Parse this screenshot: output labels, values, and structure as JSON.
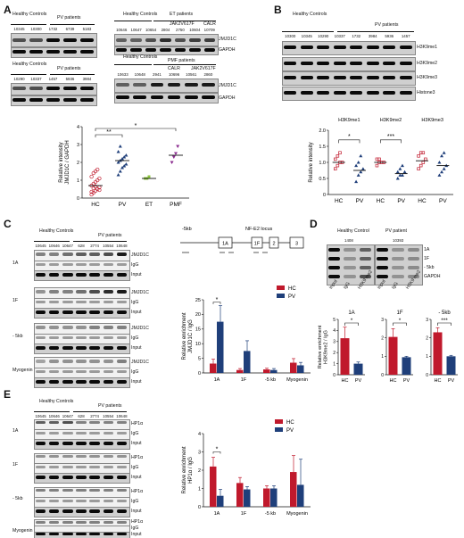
{
  "panels": {
    "A": "A",
    "B": "B",
    "C": "C",
    "D": "D",
    "E": "E"
  },
  "a": {
    "blot1": {
      "group_hc": "Healthy\nControls",
      "group_pv": "PV patients",
      "lanes": [
        "10345",
        "10300",
        "1732",
        "6739",
        "5183"
      ]
    },
    "blot2": {
      "group_hc": "Healthy\nControls",
      "group_et": "ET patients",
      "calr": "CALR",
      "jak2": "JAK2V617F",
      "lanes": [
        "10646",
        "10647",
        "10654",
        "2804",
        "2750",
        "10604",
        "10709"
      ]
    },
    "blot3": {
      "group_hc": "Healthy\nControls",
      "group_pv": "PV patients",
      "lanes": [
        "10290",
        "10337",
        "1457",
        "5936",
        "3984"
      ]
    },
    "blot4": {
      "group_hc": "Healthy\nControls",
      "group_pmf": "PMF patients",
      "calr": "CALR",
      "jak2": "JAK2V617F",
      "lanes": [
        "10633",
        "10648",
        "2941",
        "10696",
        "10561",
        "2860"
      ]
    },
    "row_labels": [
      "JMJD1C",
      "GAPDH"
    ],
    "row_labels2": [
      "JMJD1C",
      "GAPDH"
    ]
  },
  "b": {
    "group_hc": "Healthy\nControls",
    "group_pv": "PV patients",
    "lanes": [
      "10300",
      "10345",
      "10290",
      "10337",
      "1732",
      "3984",
      "5936",
      "1457"
    ],
    "rows": [
      "H3K9me1",
      "H3K9me2",
      "H3K9me3",
      "Histone3"
    ]
  },
  "c": {
    "group_hc": "Healthy\nControls",
    "group_pv": "PV patients",
    "lanes": [
      "10645",
      "10646",
      "10647",
      "628",
      "2774",
      "10554",
      "10648"
    ],
    "regions": [
      "1A",
      "1F",
      "- 5kb",
      "Myogenin"
    ],
    "rows": [
      "JMJD1C",
      "IgG",
      "Input"
    ],
    "locus_title": "NF-E2 locus",
    "locus_minus5kb": "-5kb",
    "exons": [
      "1A",
      "1F",
      "2",
      "3"
    ]
  },
  "d": {
    "group_hc": "Healthy Control",
    "group_pv": "PV patient",
    "hc_id": "1408",
    "pv_id": "10393",
    "rows": [
      "1A",
      "1F",
      "- 5kb",
      "GAPDH"
    ],
    "lanes": [
      "Input",
      "IgG",
      "H3K9 me2"
    ]
  },
  "e": {
    "group_hc": "Healthy\nControls",
    "group_pv": "PV patients",
    "lanes": [
      "10645",
      "10646",
      "10647",
      "628",
      "2774",
      "10554",
      "10648"
    ],
    "regions": [
      "1A",
      "1F",
      "- 5kb",
      "Myogenin"
    ],
    "rows": [
      "HP1α",
      "IgG",
      "Input"
    ]
  },
  "chart_data": [
    {
      "id": "A-dot",
      "type": "scatter",
      "categories": [
        "HC",
        "PV",
        "ET",
        "PMF"
      ],
      "ylabel": "Relative intensity\nJMJD1C / GAPDH",
      "ylim": [
        0,
        4
      ],
      "yticks": [
        "0",
        "1",
        "2",
        "3",
        "4"
      ],
      "colors": [
        "#c0192c",
        "#1f3f7a",
        "#8dc63f",
        "#8b2c8f"
      ],
      "points": [
        [
          0.2,
          0.3,
          0.4,
          0.5,
          0.6,
          0.7,
          0.8,
          0.9,
          1.0,
          1.1,
          1.2,
          1.4,
          1.5,
          1.6,
          0.45,
          0.35,
          0.55,
          0.65
        ],
        [
          1.3,
          1.5,
          1.7,
          1.8,
          1.9,
          2.0,
          2.1,
          2.2,
          2.3,
          2.4,
          2.6,
          2.9
        ],
        [
          1.1,
          1.1,
          1.2
        ],
        [
          2.0,
          2.3,
          2.5,
          2.9
        ]
      ],
      "medians": [
        0.7,
        2.1,
        1.1,
        2.4
      ],
      "significance": [
        [
          "HC",
          "PV",
          "**"
        ],
        [
          "HC",
          "PMF",
          "*"
        ]
      ]
    },
    {
      "id": "B-dot",
      "type": "scatter",
      "categories": [
        "HC",
        "PV",
        "HC",
        "PV",
        "HC",
        "PV"
      ],
      "group_labels": [
        "H3K9me1",
        "H3K9me2",
        "H3K9me3"
      ],
      "ylabel": "Relative intensity",
      "ylim": [
        0,
        2.0
      ],
      "yticks": [
        "0",
        "0.5",
        "1.0",
        "1.5",
        "2.0"
      ],
      "colors": [
        "#c0192c",
        "#1f3f7a"
      ],
      "points": [
        [
          0.8,
          0.9,
          1.0,
          1.0,
          1.1,
          1.2,
          1.3
        ],
        [
          0.4,
          0.6,
          0.7,
          0.8,
          0.9,
          1.0,
          1.2
        ],
        [
          0.9,
          1.0,
          1.0,
          1.0,
          1.1,
          1.1
        ],
        [
          0.5,
          0.6,
          0.6,
          0.7,
          0.7,
          0.8,
          0.9
        ],
        [
          0.8,
          0.9,
          1.0,
          1.1,
          1.2,
          1.3,
          1.3
        ],
        [
          0.6,
          0.7,
          0.8,
          0.9,
          1.0,
          1.2,
          1.3
        ]
      ],
      "medians": [
        1.0,
        0.75,
        1.0,
        0.65,
        1.05,
        0.9
      ],
      "significance": [
        [
          "0",
          "1",
          "*"
        ],
        [
          "2",
          "3",
          "***"
        ]
      ]
    },
    {
      "id": "C-bar",
      "type": "bar",
      "categories": [
        "1A",
        "1F",
        "-5 kb",
        "Myogenin"
      ],
      "ylabel": "Relative enrichment\nJMJD1C / IgG",
      "ylim": [
        0,
        25
      ],
      "yticks": [
        "0",
        "5",
        "10",
        "15",
        "20",
        "25"
      ],
      "series": [
        {
          "name": "HC",
          "color": "#c0192c",
          "values": [
            3.2,
            1.0,
            1.2,
            3.5
          ],
          "errors": [
            1.5,
            0.5,
            0.4,
            1.4
          ]
        },
        {
          "name": "PV",
          "color": "#1f3f7a",
          "values": [
            17.5,
            7.5,
            1.0,
            2.6
          ],
          "errors": [
            5.5,
            3.5,
            0.5,
            1.0
          ]
        }
      ],
      "significance": [
        [
          "1A",
          "*"
        ]
      ]
    },
    {
      "id": "D-bar-1A",
      "type": "bar",
      "title": "1A",
      "categories": [
        "HC",
        "PV"
      ],
      "ylabel": "Relative enrichment\nH3K9me2 / IgG",
      "ylim": [
        0,
        5
      ],
      "yticks": [
        "0",
        "1",
        "2",
        "3",
        "4",
        "5"
      ],
      "colors": [
        "#c0192c",
        "#1f3f7a"
      ],
      "values": [
        3.3,
        1.0
      ],
      "errors": [
        1.0,
        0.15
      ],
      "significance": "*"
    },
    {
      "id": "D-bar-1F",
      "type": "bar",
      "title": "1F",
      "categories": [
        "HC",
        "PV"
      ],
      "ylim": [
        0,
        3
      ],
      "yticks": [
        "0",
        "1",
        "2",
        "3"
      ],
      "colors": [
        "#c0192c",
        "#1f3f7a"
      ],
      "values": [
        2.05,
        0.95
      ],
      "errors": [
        0.45,
        0.05
      ],
      "significance": "*"
    },
    {
      "id": "D-bar-5kb",
      "type": "bar",
      "title": "- 5kb",
      "categories": [
        "HC",
        "PV"
      ],
      "ylim": [
        0,
        3
      ],
      "yticks": [
        "0",
        "1",
        "2",
        "3"
      ],
      "colors": [
        "#c0192c",
        "#1f3f7a"
      ],
      "values": [
        2.3,
        1.0
      ],
      "errors": [
        0.25,
        0.05
      ],
      "significance": "***"
    },
    {
      "id": "E-bar",
      "type": "bar",
      "categories": [
        "1A",
        "1F",
        "-5 kb",
        "Myogenin"
      ],
      "ylabel": "Relative enrichment\nHP1α / IgG",
      "ylim": [
        0,
        4
      ],
      "yticks": [
        "0",
        "1",
        "2",
        "3",
        "4"
      ],
      "series": [
        {
          "name": "HC",
          "color": "#c0192c",
          "values": [
            2.2,
            1.3,
            1.0,
            1.9
          ],
          "errors": [
            0.5,
            0.3,
            0.15,
            0.9
          ]
        },
        {
          "name": "PV",
          "color": "#1f3f7a",
          "values": [
            0.6,
            0.95,
            1.0,
            1.2
          ],
          "errors": [
            0.35,
            0.15,
            0.15,
            1.4
          ]
        }
      ],
      "significance": [
        [
          "1A",
          "*"
        ]
      ]
    }
  ]
}
